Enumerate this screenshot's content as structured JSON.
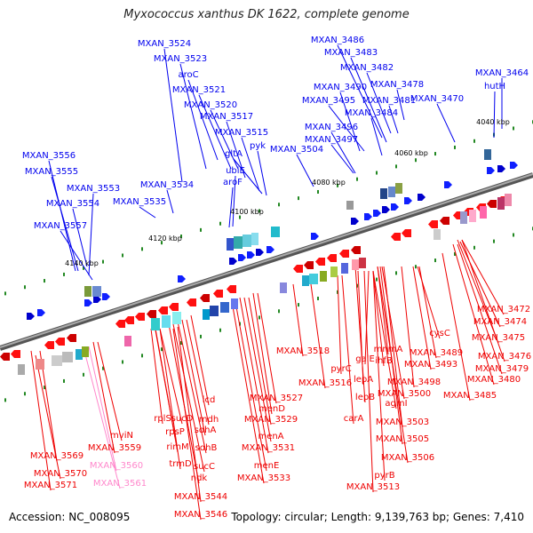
{
  "title": "Myxococcus xanthus DK 1622, complete genome",
  "footer": {
    "accession": "Accession: NC_008095",
    "info": "Topology: circular; Length: 9,139,763 bp; Genes: 7,410"
  },
  "colors": {
    "forward_strand": "#0000ee",
    "reverse_strand": "#ee0000",
    "pseudo_label": "#ff88cc",
    "backbone": "#777777",
    "tick": "#228822"
  },
  "kbp_ticks": [
    "4040 kbp",
    "4060 kbp",
    "4080 kbp",
    "4100 kbp",
    "4120 kbp",
    "4140 kbp"
  ],
  "top_labels": [
    "MXAN_3524",
    "MXAN_3523",
    "aroC",
    "MXAN_3521",
    "MXAN_3520",
    "MXAN_3517",
    "MXAN_3515",
    "pyk",
    "gltA",
    "ubiE",
    "aroF",
    "MXAN_3534",
    "MXAN_3535",
    "MXAN_3556",
    "MXAN_3555",
    "MXAN_3553",
    "MXAN_3554",
    "MXAN_3557",
    "MXAN_3486",
    "MXAN_3483",
    "MXAN_3482",
    "MXAN_3490",
    "MXAN_3478",
    "MXAN_3495",
    "MXAN_3481",
    "MXAN_3484",
    "MXAN_3470",
    "MXAN_3496",
    "MXAN_3497",
    "MXAN_3504",
    "hutH",
    "MXAN_3464"
  ],
  "bottom_labels": [
    "MXAN_3472",
    "MXAN_3474",
    "MXAN_3475",
    "MXAN_3476",
    "MXAN_3479",
    "MXAN_3480",
    "MXAN_3485",
    "cysC",
    "MXAN_3489",
    "MXAN_3493",
    "MXAN_3498",
    "mnmA",
    "ihfB",
    "galE",
    "agmI",
    "MXAN_3500",
    "lepA",
    "lepB",
    "pyrC",
    "MXAN_3518",
    "MXAN_3516",
    "carA",
    "MXAN_3503",
    "MXAN_3505",
    "MXAN_3506",
    "pyrB",
    "MXAN_3513",
    "MXAN_3527",
    "menD",
    "MXAN_3529",
    "menA",
    "MXAN_3531",
    "menE",
    "MXAN_3533",
    "icd",
    "mdh",
    "sdhA",
    "sdhB",
    "sucC",
    "ndk",
    "rplS",
    "sucD",
    "rpsP",
    "rimM",
    "trmD",
    "MXAN_3544",
    "MXAN_3546",
    "mviN",
    "MXAN_3559",
    "MXAN_3569",
    "MXAN_3570",
    "MXAN_3571"
  ],
  "pseudo_labels": [
    "MXAN_3560",
    "MXAN_3561"
  ]
}
